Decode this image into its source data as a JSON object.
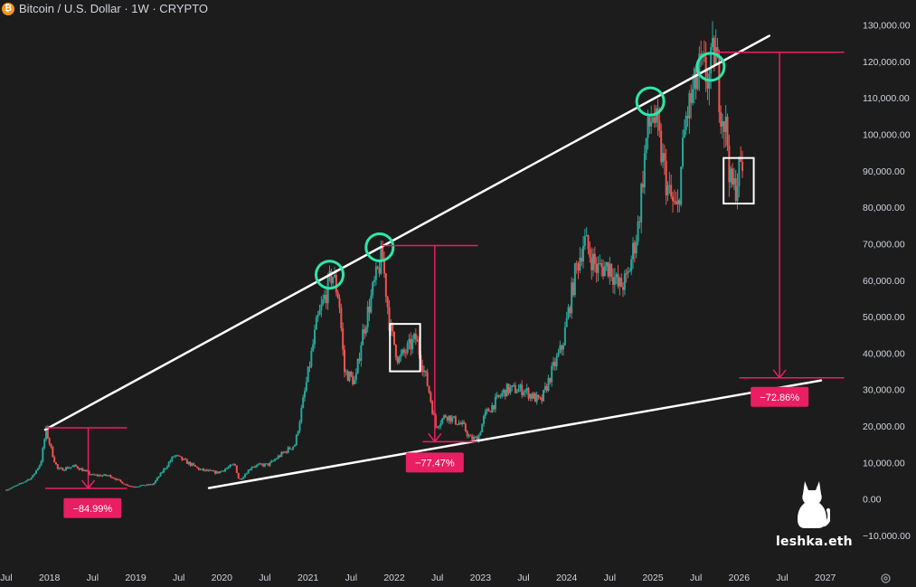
{
  "header": {
    "title": "Bitcoin / U.S. Dollar · 1W · CRYPTO",
    "icon": "bitcoin-icon"
  },
  "watermark": {
    "text": "leshka.eth",
    "icon": "cat-icon"
  },
  "settings_icon": "gear-icon",
  "colors": {
    "background": "#1c1c1c",
    "up": "#26a69a",
    "down": "#ef5350",
    "annotation": "#e91e63",
    "trendline": "#ffffff",
    "circle": "#2ee6a8"
  },
  "chart_data": {
    "type": "candlestick",
    "timeframe": "1W",
    "y_axis": {
      "min": -10000,
      "max": 130000,
      "tick_values": [
        130000,
        120000,
        110000,
        100000,
        90000,
        80000,
        70000,
        60000,
        50000,
        40000,
        30000,
        20000,
        10000,
        0,
        -10000
      ],
      "tick_labels": [
        "130,000.00",
        "120,000.00",
        "110,000.00",
        "100,000.00",
        "90,000.00",
        "80,000.00",
        "70,000.00",
        "60,000.00",
        "50,000.00",
        "40,000.00",
        "30,000.00",
        "20,000.00",
        "10,000.00",
        "0.00",
        "−10,000.00"
      ]
    },
    "x_axis": {
      "min": 2017.5,
      "max": 2027.15,
      "ticks": [
        {
          "t": 2017.5,
          "label": "Jul"
        },
        {
          "t": 2018.0,
          "label": "2018"
        },
        {
          "t": 2018.5,
          "label": "Jul"
        },
        {
          "t": 2019.0,
          "label": "2019"
        },
        {
          "t": 2019.5,
          "label": "Jul"
        },
        {
          "t": 2020.0,
          "label": "2020"
        },
        {
          "t": 2020.5,
          "label": "Jul"
        },
        {
          "t": 2021.0,
          "label": "2021"
        },
        {
          "t": 2021.5,
          "label": "Jul"
        },
        {
          "t": 2022.0,
          "label": "2022"
        },
        {
          "t": 2022.5,
          "label": "Jul"
        },
        {
          "t": 2023.0,
          "label": "2023"
        },
        {
          "t": 2023.5,
          "label": "Jul"
        },
        {
          "t": 2024.0,
          "label": "2024"
        },
        {
          "t": 2024.5,
          "label": "Jul"
        },
        {
          "t": 2025.0,
          "label": "2025"
        },
        {
          "t": 2025.5,
          "label": "Jul"
        },
        {
          "t": 2026.0,
          "label": "2026"
        },
        {
          "t": 2026.5,
          "label": "Jul"
        },
        {
          "t": 2027.0,
          "label": "2027"
        }
      ]
    },
    "price_path": [
      [
        2017.5,
        2500
      ],
      [
        2017.65,
        4000
      ],
      [
        2017.8,
        6000
      ],
      [
        2017.9,
        10000
      ],
      [
        2017.96,
        19000
      ],
      [
        2018.05,
        11000
      ],
      [
        2018.1,
        8000
      ],
      [
        2018.3,
        9000
      ],
      [
        2018.5,
        6500
      ],
      [
        2018.7,
        6400
      ],
      [
        2018.88,
        4000
      ],
      [
        2018.96,
        3400
      ],
      [
        2019.2,
        4000
      ],
      [
        2019.45,
        12000
      ],
      [
        2019.6,
        10000
      ],
      [
        2019.75,
        8000
      ],
      [
        2019.95,
        7200
      ],
      [
        2020.15,
        9500
      ],
      [
        2020.2,
        5000
      ],
      [
        2020.35,
        9000
      ],
      [
        2020.55,
        9500
      ],
      [
        2020.65,
        11500
      ],
      [
        2020.85,
        15000
      ],
      [
        2020.96,
        29000
      ],
      [
        2021.1,
        48000
      ],
      [
        2021.28,
        62000
      ],
      [
        2021.36,
        55000
      ],
      [
        2021.42,
        35000
      ],
      [
        2021.55,
        32000
      ],
      [
        2021.62,
        44000
      ],
      [
        2021.75,
        57000
      ],
      [
        2021.86,
        67000
      ],
      [
        2021.95,
        47000
      ],
      [
        2022.05,
        38000
      ],
      [
        2022.25,
        44000
      ],
      [
        2022.4,
        30000
      ],
      [
        2022.48,
        20000
      ],
      [
        2022.6,
        23000
      ],
      [
        2022.8,
        20000
      ],
      [
        2022.88,
        16500
      ],
      [
        2022.97,
        16600
      ],
      [
        2023.05,
        23000
      ],
      [
        2023.22,
        28000
      ],
      [
        2023.3,
        30000
      ],
      [
        2023.5,
        30000
      ],
      [
        2023.7,
        26500
      ],
      [
        2023.83,
        35000
      ],
      [
        2023.95,
        42000
      ],
      [
        2024.1,
        62000
      ],
      [
        2024.2,
        71000
      ],
      [
        2024.35,
        63000
      ],
      [
        2024.5,
        64000
      ],
      [
        2024.6,
        58000
      ],
      [
        2024.7,
        60000
      ],
      [
        2024.83,
        75000
      ],
      [
        2024.92,
        98000
      ],
      [
        2025.0,
        106000
      ],
      [
        2025.08,
        97000
      ],
      [
        2025.18,
        84000
      ],
      [
        2025.28,
        78000
      ],
      [
        2025.38,
        104000
      ],
      [
        2025.55,
        118000
      ],
      [
        2025.65,
        115000
      ],
      [
        2025.72,
        124000
      ],
      [
        2025.78,
        109000
      ],
      [
        2025.86,
        100000
      ],
      [
        2025.9,
        86000
      ],
      [
        2025.95,
        85000
      ],
      [
        2026.0,
        90000
      ],
      [
        2026.05,
        92000
      ]
    ],
    "trendlines": [
      {
        "name": "upper-resistance",
        "from": [
          2017.95,
          19000
        ],
        "to": [
          2026.35,
          127000
        ]
      },
      {
        "name": "lower-support",
        "from": [
          2019.85,
          3000
        ],
        "to": [
          2026.95,
          32500
        ]
      }
    ],
    "touch_circles": [
      [
        2021.25,
        61500
      ],
      [
        2021.83,
        69000
      ],
      [
        2024.97,
        109000
      ],
      [
        2025.67,
        118500
      ]
    ],
    "boxes": [
      {
        "t1": 2021.95,
        "t2": 2022.3,
        "p1": 48000,
        "p2": 35000
      },
      {
        "t1": 2025.82,
        "t2": 2026.17,
        "p1": 93500,
        "p2": 81000
      }
    ],
    "drawdowns": [
      {
        "label": "−84.99%",
        "x_from": 2017.95,
        "x_to": 2018.9,
        "arrow_x": 2018.45,
        "top": 19500,
        "bottom": 2900,
        "badge_t": 2018.5,
        "badge_p": -2500
      },
      {
        "label": "−77.47%",
        "x_from": 2021.85,
        "x_to": 2022.97,
        "arrow_x": 2022.47,
        "top": 69500,
        "bottom": 15700,
        "badge_t": 2022.47,
        "badge_p": 10000,
        "lower_from": 2022.33
      },
      {
        "label": "−72.86%",
        "x_from": 2025.72,
        "x_to": 2027.22,
        "arrow_x": 2026.47,
        "top": 122500,
        "bottom": 33200,
        "badge_t": 2026.47,
        "badge_p": 28000,
        "lower_from": 2026.0
      }
    ]
  }
}
